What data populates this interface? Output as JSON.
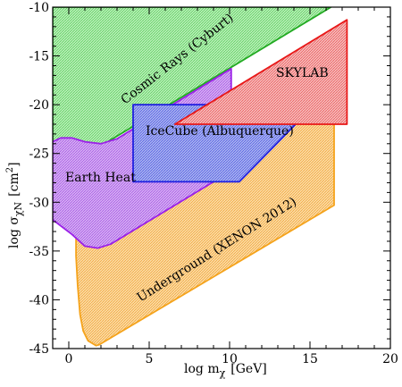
{
  "chart_data": {
    "type": "area",
    "xlabel_base": "log m",
    "xlabel_sub": "χ",
    "xlabel_unit": "[GeV]",
    "ylabel_base": "log σ",
    "ylabel_sub": "χN",
    "ylabel_unit": "[cm",
    "ylabel_sup": "2",
    "ylabel_close": "]",
    "xlim": [
      -1,
      20
    ],
    "ylim": [
      -45,
      -10
    ],
    "xticks": [
      0,
      5,
      10,
      15,
      20
    ],
    "yticks": [
      -10,
      -15,
      -20,
      -25,
      -30,
      -35,
      -40,
      -45
    ],
    "regions": [
      {
        "name": "Cosmic Rays (Cyburt)",
        "color": "#22aa22",
        "fill": "#98e598",
        "points": [
          [
            -1,
            -27.2
          ],
          [
            16.3,
            -10
          ],
          [
            -1,
            -10
          ]
        ]
      },
      {
        "name": "Underground (XENON 2012)",
        "color": "#f5a31b",
        "fill": "#f8c978",
        "points": [
          [
            0.45,
            -33.5
          ],
          [
            16.5,
            -18.2
          ],
          [
            16.5,
            -30.3
          ],
          [
            1.9,
            -44.6
          ],
          [
            1.7,
            -44.7
          ],
          [
            1.2,
            -44.2
          ],
          [
            0.9,
            -43.2
          ],
          [
            0.7,
            -41.5
          ],
          [
            0.55,
            -38.5
          ],
          [
            0.45,
            -35.5
          ]
        ]
      },
      {
        "name": "Earth Heat",
        "color": "#9b20e8",
        "fill": "#bf86ec",
        "points": [
          [
            -1,
            -23.8
          ],
          [
            -0.5,
            -23.4
          ],
          [
            0.2,
            -23.4
          ],
          [
            1.0,
            -23.8
          ],
          [
            2.0,
            -24.0
          ],
          [
            3.0,
            -23.5
          ],
          [
            10.1,
            -16.3
          ],
          [
            10.1,
            -26.8
          ],
          [
            2.6,
            -34.3
          ],
          [
            1.8,
            -34.7
          ],
          [
            1.0,
            -34.5
          ],
          [
            0.2,
            -33.3
          ],
          [
            -1,
            -31.8
          ]
        ]
      },
      {
        "name": "IceCube (Albuquerque)",
        "color": "#1f1fe0",
        "fill": "#7c87e8",
        "points": [
          [
            4.0,
            -20.0
          ],
          [
            15.3,
            -20.0
          ],
          [
            10.6,
            -27.9
          ],
          [
            4.0,
            -27.9
          ]
        ]
      },
      {
        "name": "SKYLAB",
        "color": "#e81818",
        "fill": "#f28f8f",
        "points": [
          [
            17.3,
            -11.3
          ],
          [
            17.3,
            -22.0
          ],
          [
            6.6,
            -22.0
          ]
        ]
      }
    ],
    "label_texts": {
      "cosmic": "Cosmic Rays (Cyburt)",
      "skylab": "SKYLAB",
      "icecube": "IceCube (Albuquerque)",
      "earth": "Earth Heat",
      "underground": "Underground (XENON 2012)"
    }
  }
}
